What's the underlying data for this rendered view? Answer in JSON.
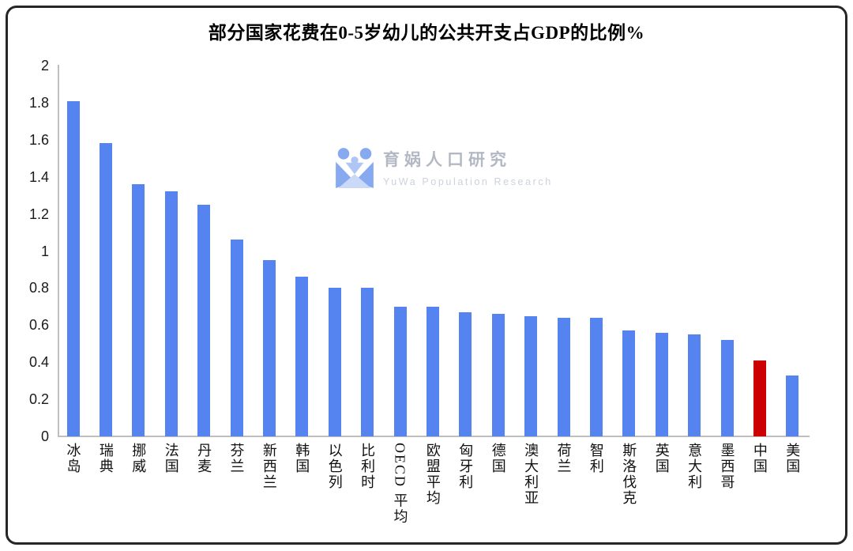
{
  "frame": {
    "border_color": "#262626",
    "background": "#ffffff"
  },
  "chart_data": {
    "type": "bar",
    "title": "部分国家花费在0-5岁幼儿的公共开支占GDP的比例%",
    "categories": [
      "冰岛",
      "瑞典",
      "挪威",
      "法国",
      "丹麦",
      "芬兰",
      "新西兰",
      "韩国",
      "以色列",
      "比利时",
      "OECD 平均",
      "欧盟平均",
      "匈牙利",
      "德国",
      "澳大利亚",
      "荷兰",
      "智利",
      "斯洛伐克",
      "英国",
      "意大利",
      "墨西哥",
      "中国",
      "美国"
    ],
    "values": [
      1.81,
      1.58,
      1.36,
      1.32,
      1.25,
      1.06,
      0.95,
      0.86,
      0.8,
      0.8,
      0.7,
      0.7,
      0.67,
      0.66,
      0.65,
      0.64,
      0.64,
      0.57,
      0.56,
      0.55,
      0.52,
      0.41,
      0.33
    ],
    "bar_color": "#5584F0",
    "highlight": {
      "category": "中国",
      "index": 21,
      "color": "#CC0000"
    },
    "xlabel": "",
    "ylabel": "",
    "ylim": [
      0,
      2
    ],
    "yticks": [
      "0",
      "0.2",
      "0.4",
      "0.6",
      "0.8",
      "1",
      "1.2",
      "1.4",
      "1.6",
      "1.8",
      "2"
    ],
    "grid": false,
    "legend": false,
    "axis_color": "#bfbfbf",
    "tick_label_color": "#1a1a1a"
  },
  "watermark": {
    "name_cn": "育娲人口研究",
    "name_en": "YuWa Population Research",
    "logo_color_primary": "#87A9EF",
    "logo_color_secondary": "#AFC6F5",
    "logo_color_light": "#CBD9F9"
  }
}
